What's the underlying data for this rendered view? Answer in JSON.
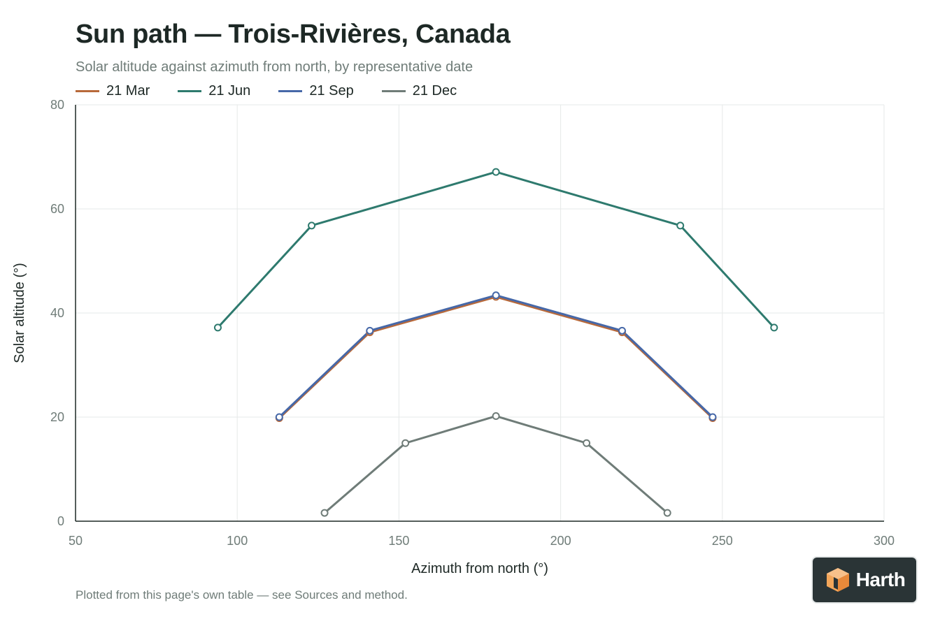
{
  "header": {
    "title": "Sun path — Trois-Rivières, Canada",
    "subtitle": "Solar altitude against azimuth from north, by representative date"
  },
  "footnote": "Plotted from this page's own table — see Sources and method.",
  "brand": {
    "logo_text": "Harth",
    "logo_icon": "cube-icon"
  },
  "chart_data": {
    "type": "line",
    "title": "Sun path — Trois-Rivières, Canada",
    "subtitle": "Solar altitude against azimuth from north, by representative date",
    "xlabel": "Azimuth from north (°)",
    "ylabel": "Solar altitude (°)",
    "xlim": [
      50,
      300
    ],
    "ylim": [
      0,
      80
    ],
    "xticks": [
      50,
      100,
      150,
      200,
      250,
      300
    ],
    "yticks": [
      0,
      20,
      40,
      60,
      80
    ],
    "grid": true,
    "legend_position": "top-left",
    "series": [
      {
        "name": "21 Mar",
        "color": "#b8693a",
        "x": [
          113,
          141,
          180,
          219,
          247
        ],
        "y": [
          19.8,
          36.3,
          43.1,
          36.3,
          19.8
        ]
      },
      {
        "name": "21 Jun",
        "color": "#2e7a6e",
        "x": [
          94,
          123,
          180,
          237,
          266
        ],
        "y": [
          37.2,
          56.8,
          67.1,
          56.8,
          37.2
        ]
      },
      {
        "name": "21 Sep",
        "color": "#4668a8",
        "x": [
          113,
          141,
          180,
          219,
          247
        ],
        "y": [
          20.0,
          36.6,
          43.4,
          36.6,
          20.0
        ]
      },
      {
        "name": "21 Dec",
        "color": "#6f7c78",
        "x": [
          127,
          152,
          180,
          208,
          233
        ],
        "y": [
          1.6,
          15.0,
          20.2,
          15.0,
          1.6
        ]
      }
    ]
  }
}
